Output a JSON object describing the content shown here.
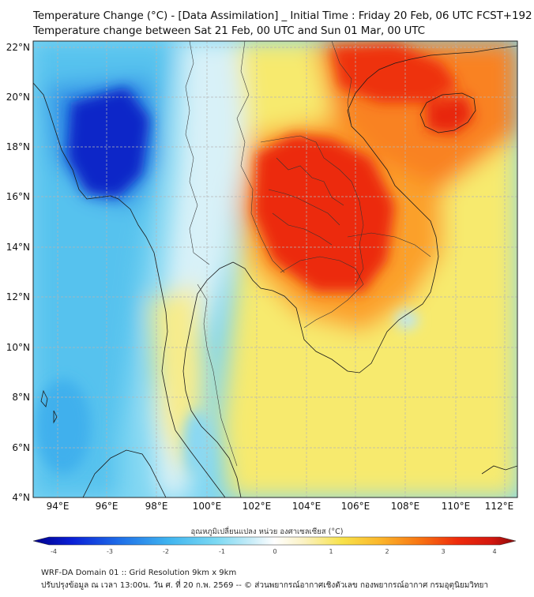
{
  "header": {
    "title_line1": "Temperature Change (°C) - [Data Assimilation] _ Initial Time : Friday 20 Feb, 06 UTC FCST+192",
    "title_line2": "Temperature change between Sat 21 Feb, 00 UTC and Sun 01 Mar, 00 UTC"
  },
  "axes": {
    "lat_labels": [
      "22°N",
      "20°N",
      "18°N",
      "16°N",
      "14°N",
      "12°N",
      "10°N",
      "8°N",
      "6°N",
      "4°N"
    ],
    "lon_labels": [
      "94°E",
      "96°E",
      "98°E",
      "100°E",
      "102°E",
      "104°E",
      "106°E",
      "108°E",
      "110°E",
      "112°E"
    ]
  },
  "colorbar": {
    "title": "อุณหภูมิเปลี่ยนแปลง หน่วย องศาเซลเซียส (°C)",
    "ticks": [
      "-4",
      "-3",
      "-2",
      "-1",
      "0",
      "1",
      "2",
      "3",
      "4"
    ],
    "palette": [
      "#00008b",
      "#0a1fd6",
      "#1f6fe8",
      "#3fb4ef",
      "#7cd9f3",
      "#c6ecf8",
      "#ffffff",
      "#fbf2c4",
      "#f8e24a",
      "#fbb52a",
      "#f87513",
      "#ee2a0b",
      "#d3170f",
      "#8b0a0a"
    ]
  },
  "footer": {
    "line1": "WRF-DA Domain 01 :: Grid Resolution 9km x 9km",
    "line2": "ปรับปรุงข้อมูล ณ เวลา 13:00น. วัน ศ. ที่ 20 ก.พ. 2569 -- © ส่วนพยากรณ์อากาศเชิงตัวเลข กองพยากรณ์อากาศ กรมอุตุนิยมวิทยา"
  },
  "colors": {
    "coast": "#1a1a1a",
    "border": "#333333",
    "grid": "#b5b5b5"
  }
}
